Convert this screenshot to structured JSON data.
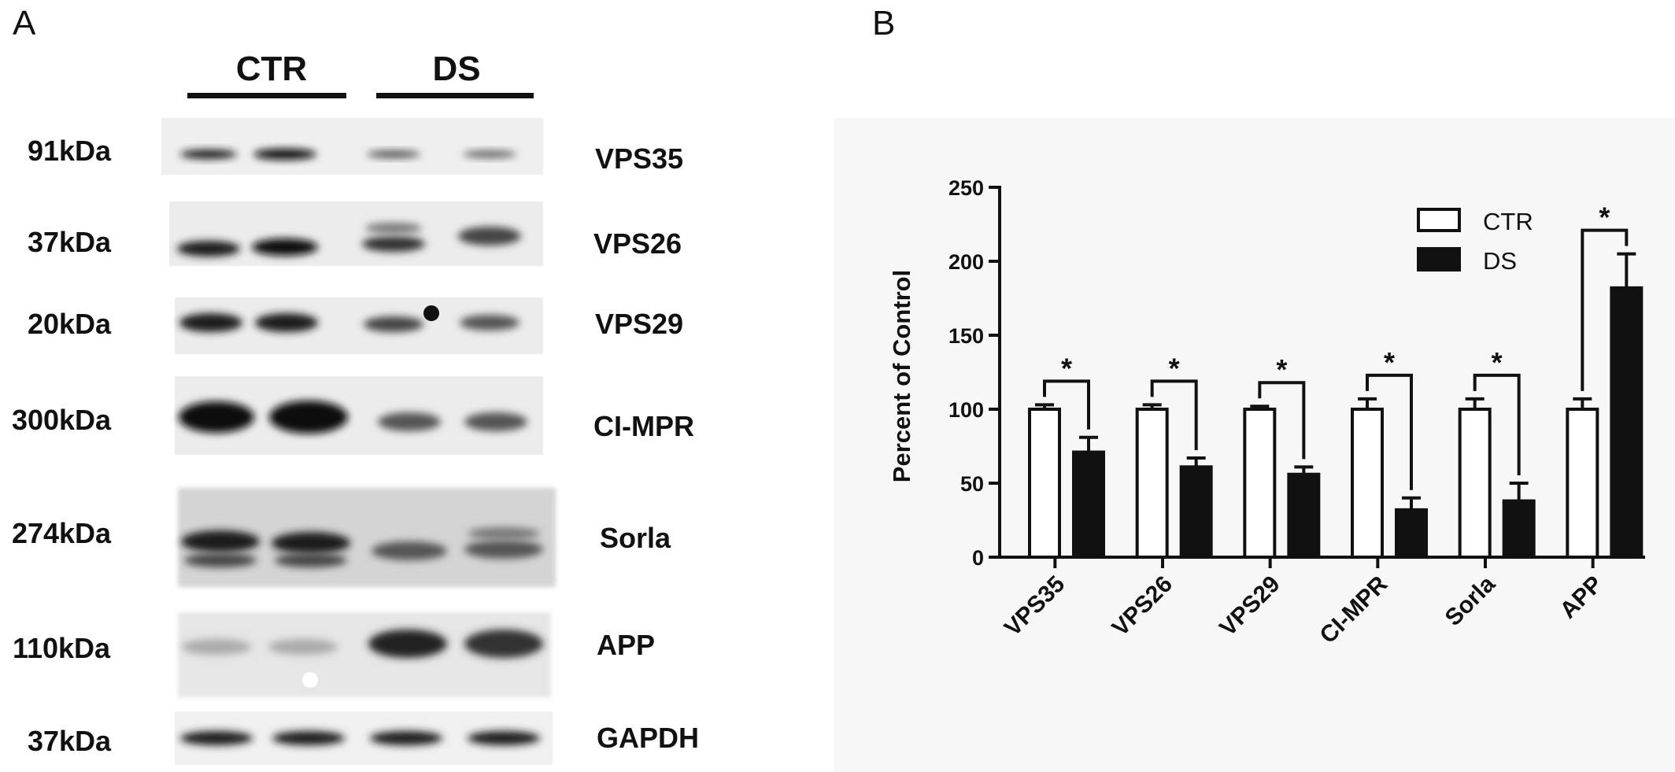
{
  "panel_a": {
    "letter": "A",
    "groups": [
      "CTR",
      "DS"
    ],
    "rows": [
      {
        "mw": "91kDa",
        "protein": "VPS35"
      },
      {
        "mw": "37kDa",
        "protein": "VPS26"
      },
      {
        "mw": "20kDa",
        "protein": "VPS29"
      },
      {
        "mw": "300kDa",
        "protein": "CI-MPR"
      },
      {
        "mw": "274kDa",
        "protein": "Sorla"
      },
      {
        "mw": "110kDa",
        "protein": "APP"
      },
      {
        "mw": "37kDa",
        "protein": "GAPDH"
      }
    ]
  },
  "panel_b": {
    "letter": "B"
  },
  "chart_data": {
    "type": "bar",
    "title": "",
    "xlabel": "",
    "ylabel": "Percent of Control",
    "ylim": [
      0,
      250
    ],
    "yticks": [
      0,
      50,
      100,
      150,
      200,
      250
    ],
    "categories": [
      "VPS35",
      "VPS26",
      "VPS29",
      "CI-MPR",
      "Sorla",
      "APP"
    ],
    "series": [
      {
        "name": "CTR",
        "values": [
          100,
          100,
          100,
          100,
          100,
          100
        ],
        "errors": [
          3,
          3,
          2,
          7,
          7,
          7
        ],
        "color": "#ffffff"
      },
      {
        "name": "DS",
        "values": [
          71,
          61,
          56,
          32,
          38,
          182
        ],
        "errors": [
          10,
          6,
          5,
          8,
          12,
          23
        ],
        "color": "#111111"
      }
    ],
    "significance": [
      "*",
      "*",
      "*",
      "*",
      "*",
      "*"
    ],
    "legend": {
      "position": "top-right"
    },
    "grid": false
  }
}
